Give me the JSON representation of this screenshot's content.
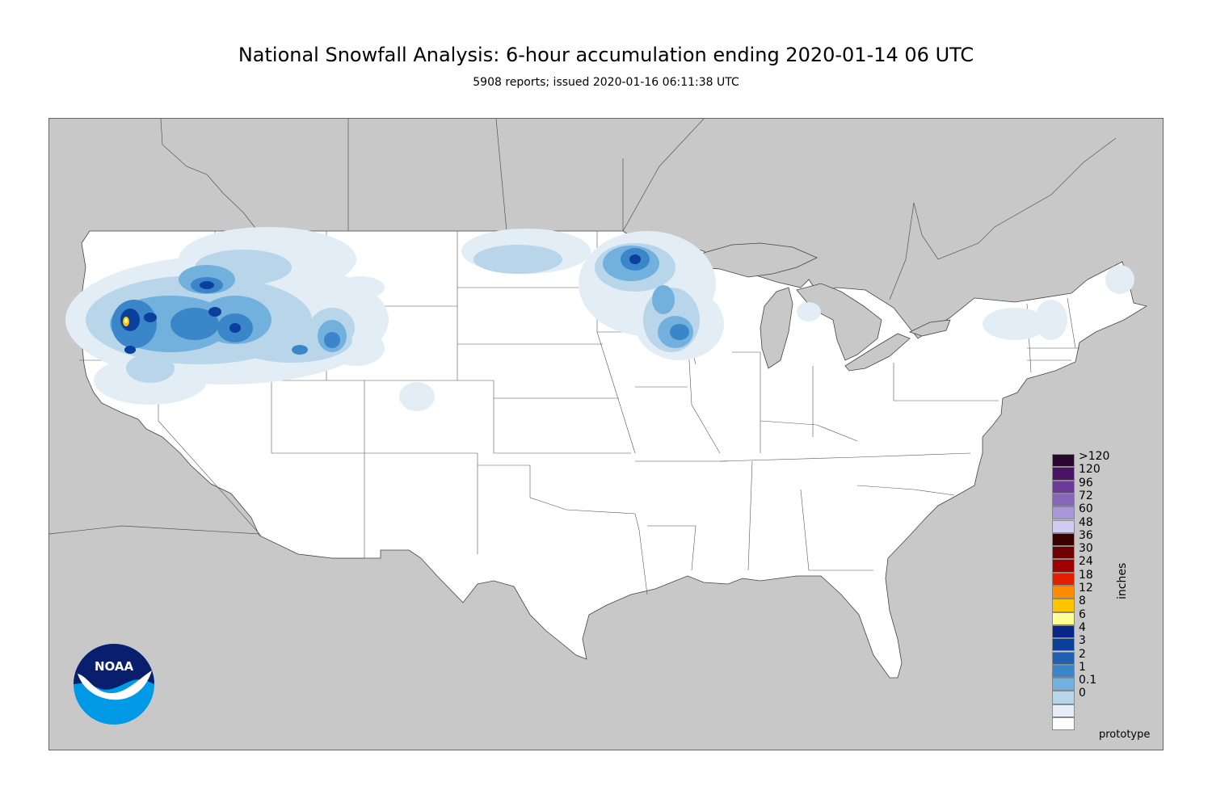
{
  "title": "National Snowfall Analysis: 6-hour accumulation ending 2020-01-14 06 UTC",
  "subtitle": "5908 reports; issued 2020-01-16 06:11:38 UTC",
  "logo": {
    "text": "NOAA",
    "colors": {
      "top": "#0a1e6e",
      "bottom": "#0099e6",
      "wave": "#ffffff"
    }
  },
  "legend": {
    "unit": "inches",
    "items": [
      {
        "label": ">120",
        "color": "#2a0630"
      },
      {
        "label": "120",
        "color": "#4a1466"
      },
      {
        "label": "96",
        "color": "#6b3b97"
      },
      {
        "label": "72",
        "color": "#8566b8"
      },
      {
        "label": "60",
        "color": "#a797d8"
      },
      {
        "label": "48",
        "color": "#d2ccf4"
      },
      {
        "label": "36",
        "color": "#3a0000"
      },
      {
        "label": "30",
        "color": "#6d0000"
      },
      {
        "label": "24",
        "color": "#a00000"
      },
      {
        "label": "18",
        "color": "#e02000"
      },
      {
        "label": "12",
        "color": "#ff8c00"
      },
      {
        "label": "8",
        "color": "#ffc400"
      },
      {
        "label": "6",
        "color": "#ffff96"
      },
      {
        "label": "4",
        "color": "#08268a"
      },
      {
        "label": "3",
        "color": "#0a3f9c"
      },
      {
        "label": "2",
        "color": "#1f60b0"
      },
      {
        "label": "1",
        "color": "#3a86c8"
      },
      {
        "label": "0.1",
        "color": "#72b0dd"
      },
      {
        "label": "0",
        "color": "#b8d6ea"
      },
      {
        "label": "",
        "color": "#e6eff7"
      },
      {
        "label": "",
        "color": "#ffffff"
      }
    ]
  },
  "footer_note": "prototype",
  "map_colors": {
    "background": "#c8c8c8",
    "land": "#ffffff",
    "water": "#c8c8c8",
    "borders": "#555555"
  }
}
